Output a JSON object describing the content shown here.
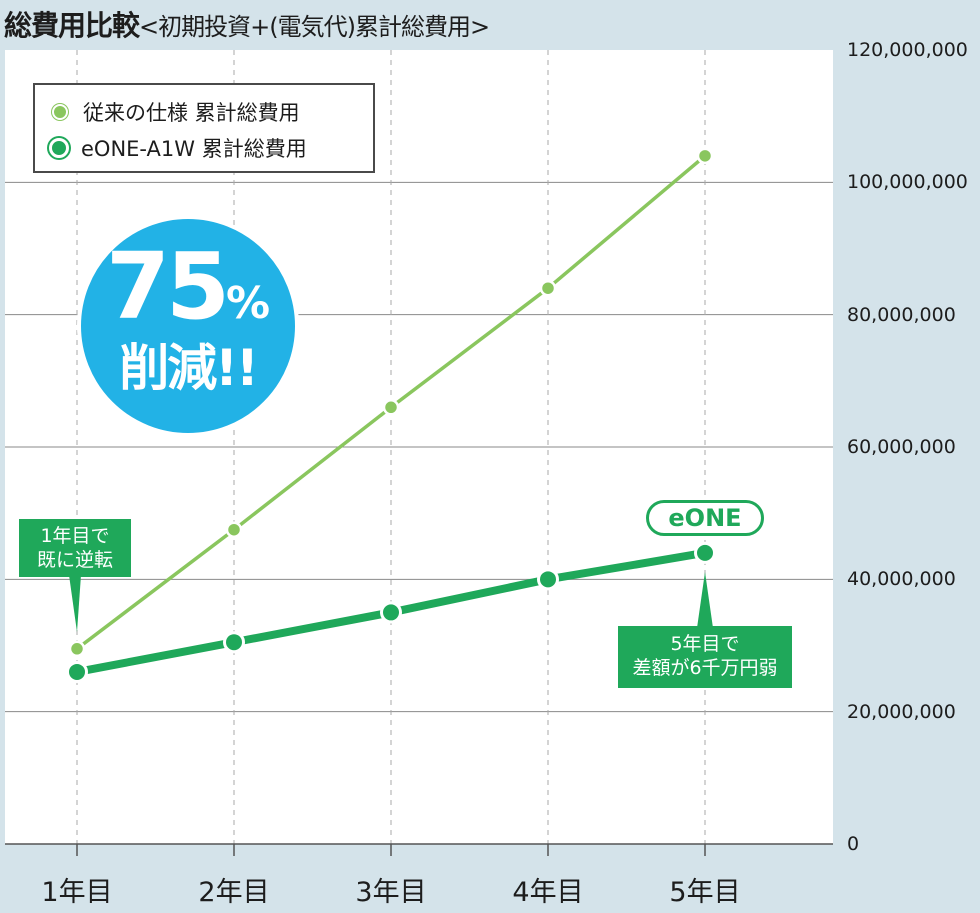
{
  "title": {
    "main": "総費用比較",
    "sub": "<初期投資+(電気代)累計総費用>"
  },
  "legend": {
    "old": "従来の仕様 累計総費用",
    "new": "eONE-A1W 累計総費用"
  },
  "badge": {
    "percent": "75",
    "percent_sign": "%",
    "word": "削減!!"
  },
  "callouts": {
    "year1": [
      "1年目で",
      "既に逆転"
    ],
    "year5": [
      "5年目で",
      "差額が6千万円弱"
    ],
    "eone_tag": "eONE"
  },
  "colors": {
    "background": "#d4e3ea",
    "plot_bg": "#ffffff",
    "old_series": "#8ac65e",
    "new_series": "#1fa85a",
    "badge": "#22b2e6"
  },
  "chart_data": {
    "type": "line",
    "categories": [
      "1年目",
      "2年目",
      "3年目",
      "4年目",
      "5年目"
    ],
    "series": [
      {
        "name": "従来の仕様 累計総費用",
        "values": [
          29500000,
          47500000,
          66000000,
          84000000,
          104000000
        ]
      },
      {
        "name": "eONE-A1W 累計総費用",
        "values": [
          26000000,
          30500000,
          35000000,
          40000000,
          44000000
        ]
      }
    ],
    "y_tick_labels": [
      "0",
      "20,000,000",
      "40,000,000",
      "60,000,000",
      "80,000,000",
      "100,000,000",
      "120,000,000"
    ],
    "ylim": [
      0,
      120000000
    ],
    "y_axis_position": "right",
    "grid": true,
    "legend_position": "top-left"
  }
}
